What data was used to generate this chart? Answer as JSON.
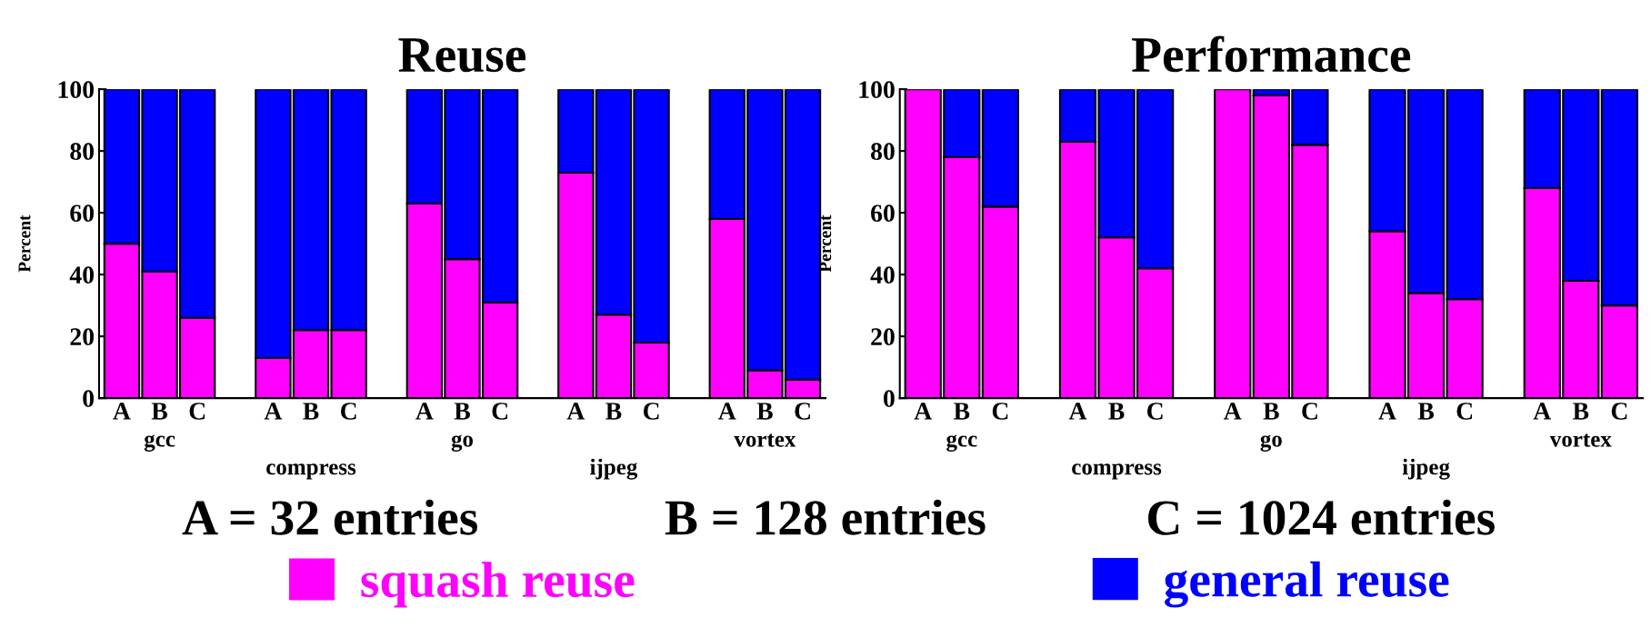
{
  "chart_data": [
    {
      "type": "bar",
      "title": "Reuse",
      "ylabel": "Percent",
      "stacked": true,
      "categories": [
        "A",
        "B",
        "C",
        null,
        "A",
        "B",
        "C",
        null,
        "A",
        "B",
        "C",
        null,
        "A",
        "B",
        "C",
        null,
        "A",
        "B",
        "C"
      ],
      "series": [
        {
          "name": "squash reuse",
          "color": "#ff00ff",
          "values": [
            50,
            41,
            26,
            null,
            13,
            22,
            22,
            null,
            63,
            45,
            31,
            null,
            73,
            27,
            18,
            null,
            58,
            9,
            6
          ]
        },
        {
          "color": "#0000ff",
          "values": [
            50,
            59,
            74,
            null,
            87,
            78,
            78,
            null,
            37,
            55,
            69,
            null,
            27,
            73,
            82,
            null,
            42,
            91,
            94
          ]
        }
      ],
      "ylim": [
        0,
        100
      ],
      "yticks": [
        0,
        20,
        40,
        60,
        80,
        100
      ],
      "legend": "bottom",
      "annotations": [
        "gcc",
        "compress",
        "go",
        "ijpeg",
        "vortex",
        "A = 32 entries",
        "B = 128 entries",
        "C = 1024 entries"
      ]
    },
    {
      "type": "bar",
      "title": "Performance",
      "ylabel": "Percent",
      "stacked": true,
      "categories": [
        "A",
        "B",
        "C",
        null,
        "A",
        "B",
        "C",
        null,
        "A",
        "B",
        "C",
        null,
        "A",
        "B",
        "C",
        null,
        "A",
        "B",
        "C"
      ],
      "series": [
        {
          "color": "#ff00ff",
          "values": [
            100,
            78,
            62,
            null,
            83,
            52,
            42,
            null,
            100,
            98,
            82,
            null,
            54,
            34,
            32,
            null,
            68,
            38,
            30
          ]
        },
        {
          "name": "general reuse",
          "color": "#0000ff",
          "values": [
            0,
            22,
            38,
            null,
            17,
            48,
            58,
            null,
            0,
            2,
            18,
            null,
            46,
            66,
            68,
            null,
            32,
            62,
            70
          ]
        }
      ],
      "ylim": [
        0,
        100
      ],
      "yticks": [
        0,
        20,
        40,
        60,
        80,
        100
      ],
      "legend": "bottom",
      "annotations": [
        "gcc",
        "compress",
        "go",
        "ijpeg",
        "vortex"
      ]
    }
  ]
}
